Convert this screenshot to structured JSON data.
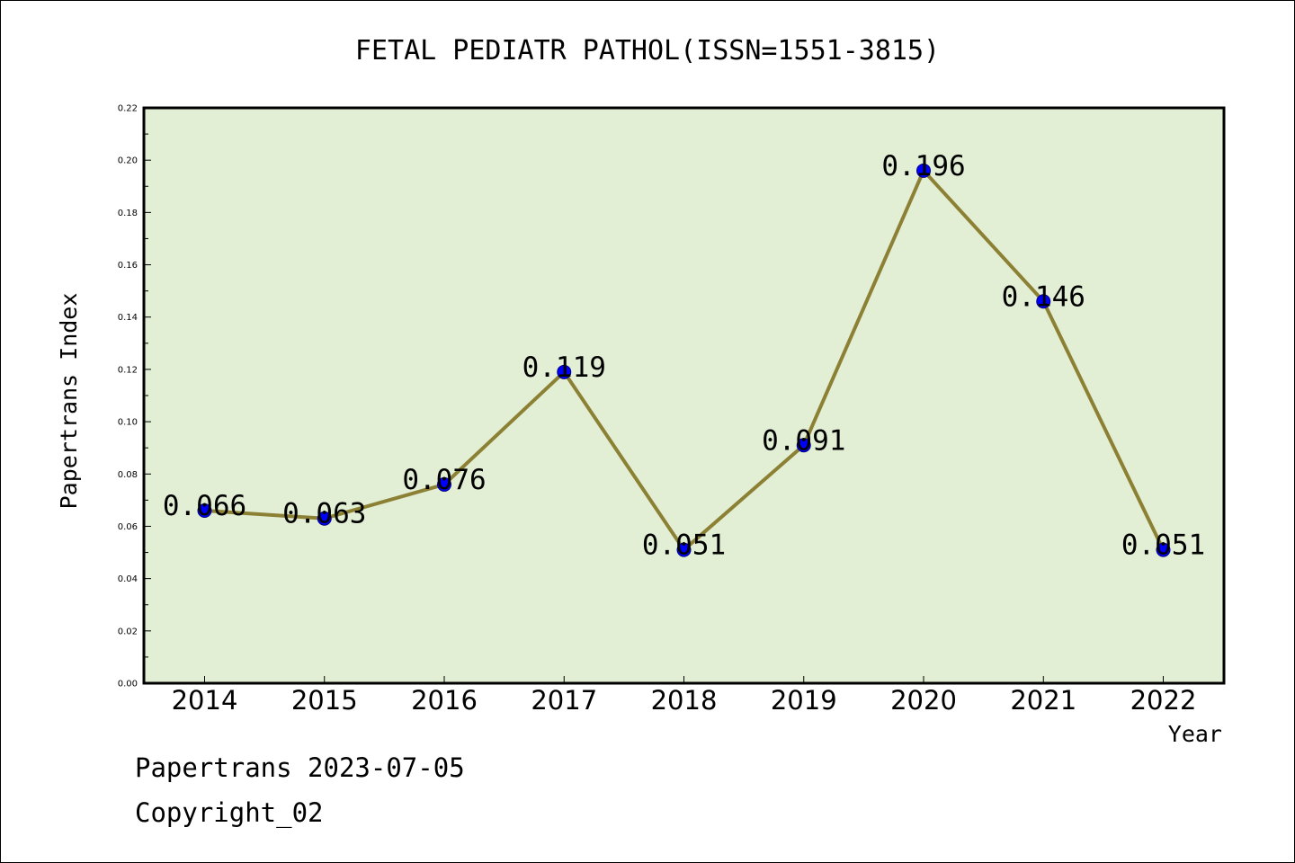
{
  "chart_data": {
    "type": "line",
    "title": "FETAL PEDIATR PATHOL(ISSN=1551-3815)",
    "xlabel": "Year",
    "ylabel": "Papertrans Index",
    "categories": [
      "2014",
      "2015",
      "2016",
      "2017",
      "2018",
      "2019",
      "2020",
      "2021",
      "2022"
    ],
    "series": [
      {
        "values": [
          0.066,
          0.063,
          0.076,
          0.119,
          0.051,
          0.091,
          0.196,
          0.146,
          0.051
        ],
        "data_labels": [
          "0.066",
          "0.063",
          "0.076",
          "0.119",
          "0.051",
          "0.091",
          "0.196",
          "0.146",
          "0.051"
        ]
      }
    ],
    "ylim": [
      0,
      0.22
    ],
    "yticks": [
      "0.00",
      "0.02",
      "0.04",
      "0.06",
      "0.08",
      "0.10",
      "0.12",
      "0.14",
      "0.16",
      "0.18",
      "0.20",
      "0.22"
    ],
    "grid": false,
    "colors": {
      "plot_background": "#e2efd4",
      "line": "#8c8034",
      "marker_fill": "#0000ff",
      "marker_edge": "#00007f"
    }
  },
  "footer": {
    "line1": "Papertrans 2023-07-05",
    "line2": "Copyright_02"
  }
}
